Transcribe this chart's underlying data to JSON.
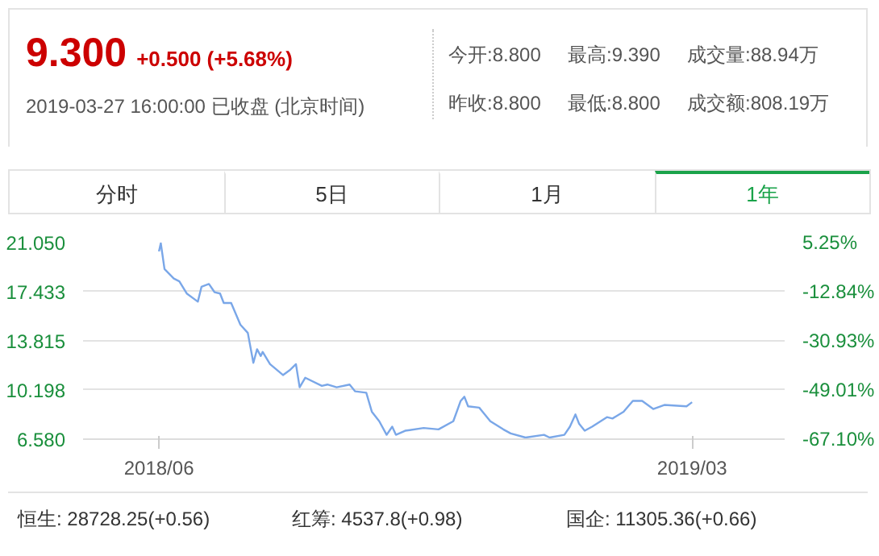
{
  "chart_data": {
    "type": "line",
    "title": "9.300",
    "subtitle": "+0.500 (+5.68%)",
    "annotations": [
      "2019-03-27 16:00:00 已收盘 (北京时间)",
      "今开:8.800",
      "最高:9.390",
      "成交量:88.94万",
      "昨收:8.800",
      "最低:8.800",
      "成交额:808.19万",
      "分时",
      "5日",
      "1月",
      "1年",
      "恒生: 28728.25(+0.56)",
      "红筹: 4537.8(+0.98)",
      "国企: 11305.36(+0.66)"
    ],
    "x": [
      "2018-06-12",
      "2018-06-13",
      "2018-06-15",
      "2018-06-20",
      "2018-06-23",
      "2018-06-27",
      "2018-07-03",
      "2018-07-05",
      "2018-07-09",
      "2018-07-12",
      "2018-07-15",
      "2018-07-17",
      "2018-07-21",
      "2018-07-26",
      "2018-07-30",
      "2018-08-02",
      "2018-08-04",
      "2018-08-06",
      "2018-08-07",
      "2018-08-11",
      "2018-08-18",
      "2018-08-22",
      "2018-08-25",
      "2018-08-27",
      "2018-08-30",
      "2018-09-08",
      "2018-09-11",
      "2018-09-16",
      "2018-09-23",
      "2018-09-26",
      "2018-10-02",
      "2018-10-05",
      "2018-10-09",
      "2018-10-13",
      "2018-10-16",
      "2018-10-18",
      "2018-10-23",
      "2018-11-02",
      "2018-11-10",
      "2018-11-18",
      "2018-11-22",
      "2018-11-24",
      "2018-11-26",
      "2018-12-02",
      "2018-12-08",
      "2018-12-15",
      "2018-12-19",
      "2018-12-27",
      "2019-01-06",
      "2019-01-09",
      "2019-01-17",
      "2019-01-20",
      "2019-01-23",
      "2019-01-25",
      "2019-01-28",
      "2019-02-01",
      "2019-02-09",
      "2019-02-12",
      "2019-02-18",
      "2019-02-23",
      "2019-02-28",
      "2019-03-06",
      "2019-03-12",
      "2019-03-24",
      "2019-03-27"
    ],
    "series": [
      {
        "color": "#7aa7e8",
        "values": [
          20.4,
          21.0,
          19.1,
          18.4,
          18.2,
          17.3,
          16.7,
          17.8,
          18.0,
          17.4,
          17.3,
          16.6,
          16.6,
          15.0,
          14.4,
          12.2,
          13.2,
          12.7,
          13.0,
          12.1,
          11.3,
          11.7,
          12.1,
          10.4,
          11.1,
          10.5,
          10.6,
          10.4,
          10.6,
          10.1,
          10.0,
          8.6,
          7.9,
          6.9,
          7.5,
          6.9,
          7.2,
          7.4,
          7.3,
          7.9,
          9.4,
          9.7,
          9.0,
          8.9,
          7.9,
          7.3,
          7.0,
          6.7,
          6.9,
          6.7,
          6.9,
          7.5,
          8.4,
          7.7,
          7.2,
          7.5,
          8.2,
          8.1,
          8.6,
          9.4,
          9.4,
          8.8,
          9.1,
          9.0,
          9.3
        ]
      }
    ],
    "xlim": [
      "2018-05-02",
      "2019-05-16"
    ],
    "xticks": [
      {
        "value": "2018-06-12",
        "label": "2018/06"
      },
      {
        "value": "2019-03-27",
        "label": "2019/03"
      }
    ],
    "ylim": [
      6.58,
      21.05
    ],
    "yticks": [
      {
        "value": 21.05,
        "label": "21.050"
      },
      17.433,
      13.815,
      10.198,
      {
        "value": 6.58,
        "label": "6.580"
      }
    ],
    "y2lim": [
      -67.1,
      5.25
    ],
    "y2ticks": [
      {
        "value": 5.25,
        "label": "5.25%"
      },
      {
        "value": -12.84,
        "label": "-12.84%"
      },
      {
        "value": -30.93,
        "label": "-30.93%"
      },
      {
        "value": -49.01,
        "label": "-49.01%"
      },
      {
        "value": -67.1,
        "label": "-67.10%"
      }
    ],
    "grid": "y"
  }
}
